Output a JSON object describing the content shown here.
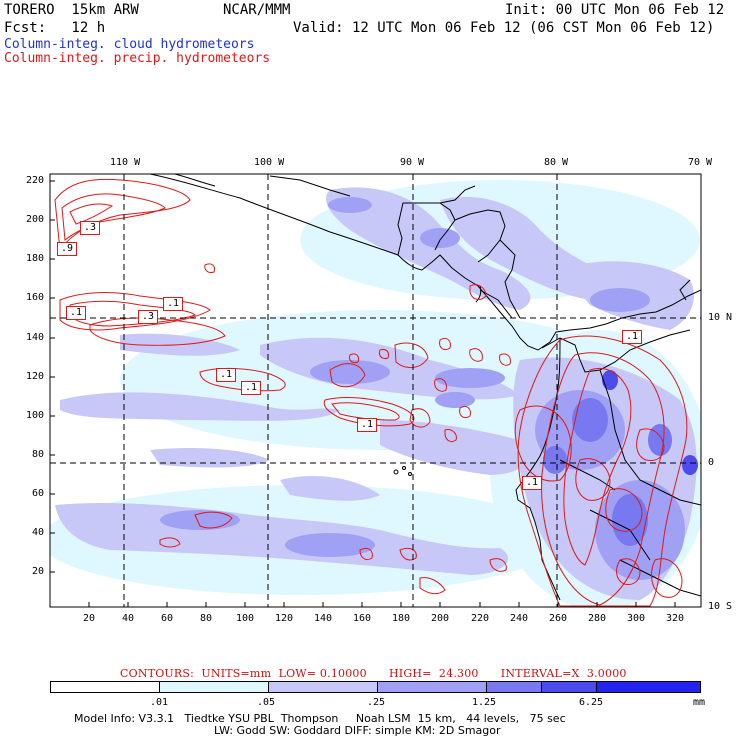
{
  "header": {
    "model": "TORERO  15km ARW",
    "org": "NCAR/MMM",
    "init": "Init: 00 UTC Mon 06 Feb 12",
    "fcst": "Fcst:   12 h",
    "valid": "Valid: 12 UTC Mon 06 Feb 12 (06 CST Mon 06 Feb 12)"
  },
  "fields": {
    "cloud": "Column-integ. cloud hydrometeors",
    "precip": "Column-integ. precip. hydrometeors"
  },
  "colors": {
    "cloud_shades": [
      "#ffffff",
      "#dff8ff",
      "#c8c8f8",
      "#a0a0f4",
      "#7878f0",
      "#4c4cee",
      "#2424ee"
    ],
    "contour": "#e01818",
    "cloud_label": "#1e32d6"
  },
  "map": {
    "lon_labels": [
      "110 W",
      "100 W",
      "90 W",
      "80 W",
      "70 W"
    ],
    "lat_labels": [
      "10 N",
      "0",
      "10 S"
    ],
    "grid_y_labels": [
      "220",
      "200",
      "180",
      "160",
      "140",
      "120",
      "100",
      "80",
      "60",
      "40",
      "20"
    ],
    "grid_x_labels": [
      "20",
      "40",
      "60",
      "80",
      "100",
      "120",
      "140",
      "160",
      "180",
      "200",
      "220",
      "240",
      "260",
      "280",
      "300",
      "320"
    ],
    "contour_labels": [
      ".3",
      ".9",
      ".1",
      ".1",
      ".3",
      ".1",
      ".1",
      ".1",
      ".1",
      ".1"
    ]
  },
  "contours_line": "CONTOURS:  UNITS=mm  LOW= 0.10000      HIGH=  24.300      INTERVAL=X  3.0000",
  "colorbar": {
    "ticks": [
      ".01",
      ".05",
      ".25",
      "1.25",
      "6.25"
    ],
    "unit": "mm"
  },
  "model_info": {
    "line1": "Model Info: V3.3.1   Tiedtke YSU PBL  Thompson     Noah LSM  15 km,   44 levels,   75 sec",
    "line2": "LW: Godd SW: Goddard DIFF: simple KM: 2D Smagor"
  }
}
